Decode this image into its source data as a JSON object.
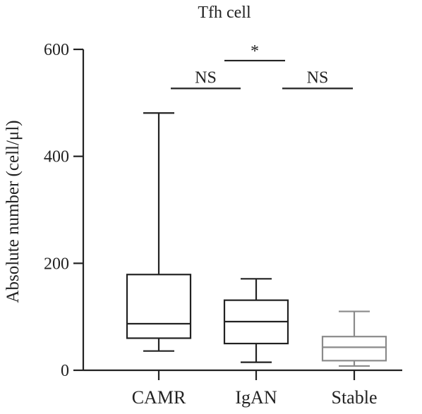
{
  "chart_data": {
    "type": "box",
    "title": "Tfh cell",
    "ylabel": "Absolute number (cell/μl)",
    "xlabel": "",
    "ylim": [
      0,
      600
    ],
    "yticks": [
      0,
      200,
      400,
      600
    ],
    "yticklabels": [
      "0",
      "200",
      "400",
      "600"
    ],
    "categories": [
      "CAMR",
      "IgAN",
      "Stable"
    ],
    "boxes": [
      {
        "category": "CAMR",
        "min": 36,
        "q1": 60,
        "median": 87,
        "q3": 179,
        "max": 481,
        "color": "#222222"
      },
      {
        "category": "IgAN",
        "min": 15,
        "q1": 50,
        "median": 91,
        "q3": 131,
        "max": 171,
        "color": "#222222"
      },
      {
        "category": "Stable",
        "min": 8,
        "q1": 18,
        "median": 43,
        "q3": 63,
        "max": 110,
        "color": "#8a8a8a"
      }
    ],
    "annotations": [
      {
        "text": "NS",
        "from": "CAMR",
        "to": "IgAN",
        "y": 527
      },
      {
        "text": "*",
        "from": "CAMR",
        "to": "Stable",
        "y": 579
      },
      {
        "text": "NS",
        "from": "IgAN",
        "to": "Stable",
        "y": 527
      }
    ]
  }
}
